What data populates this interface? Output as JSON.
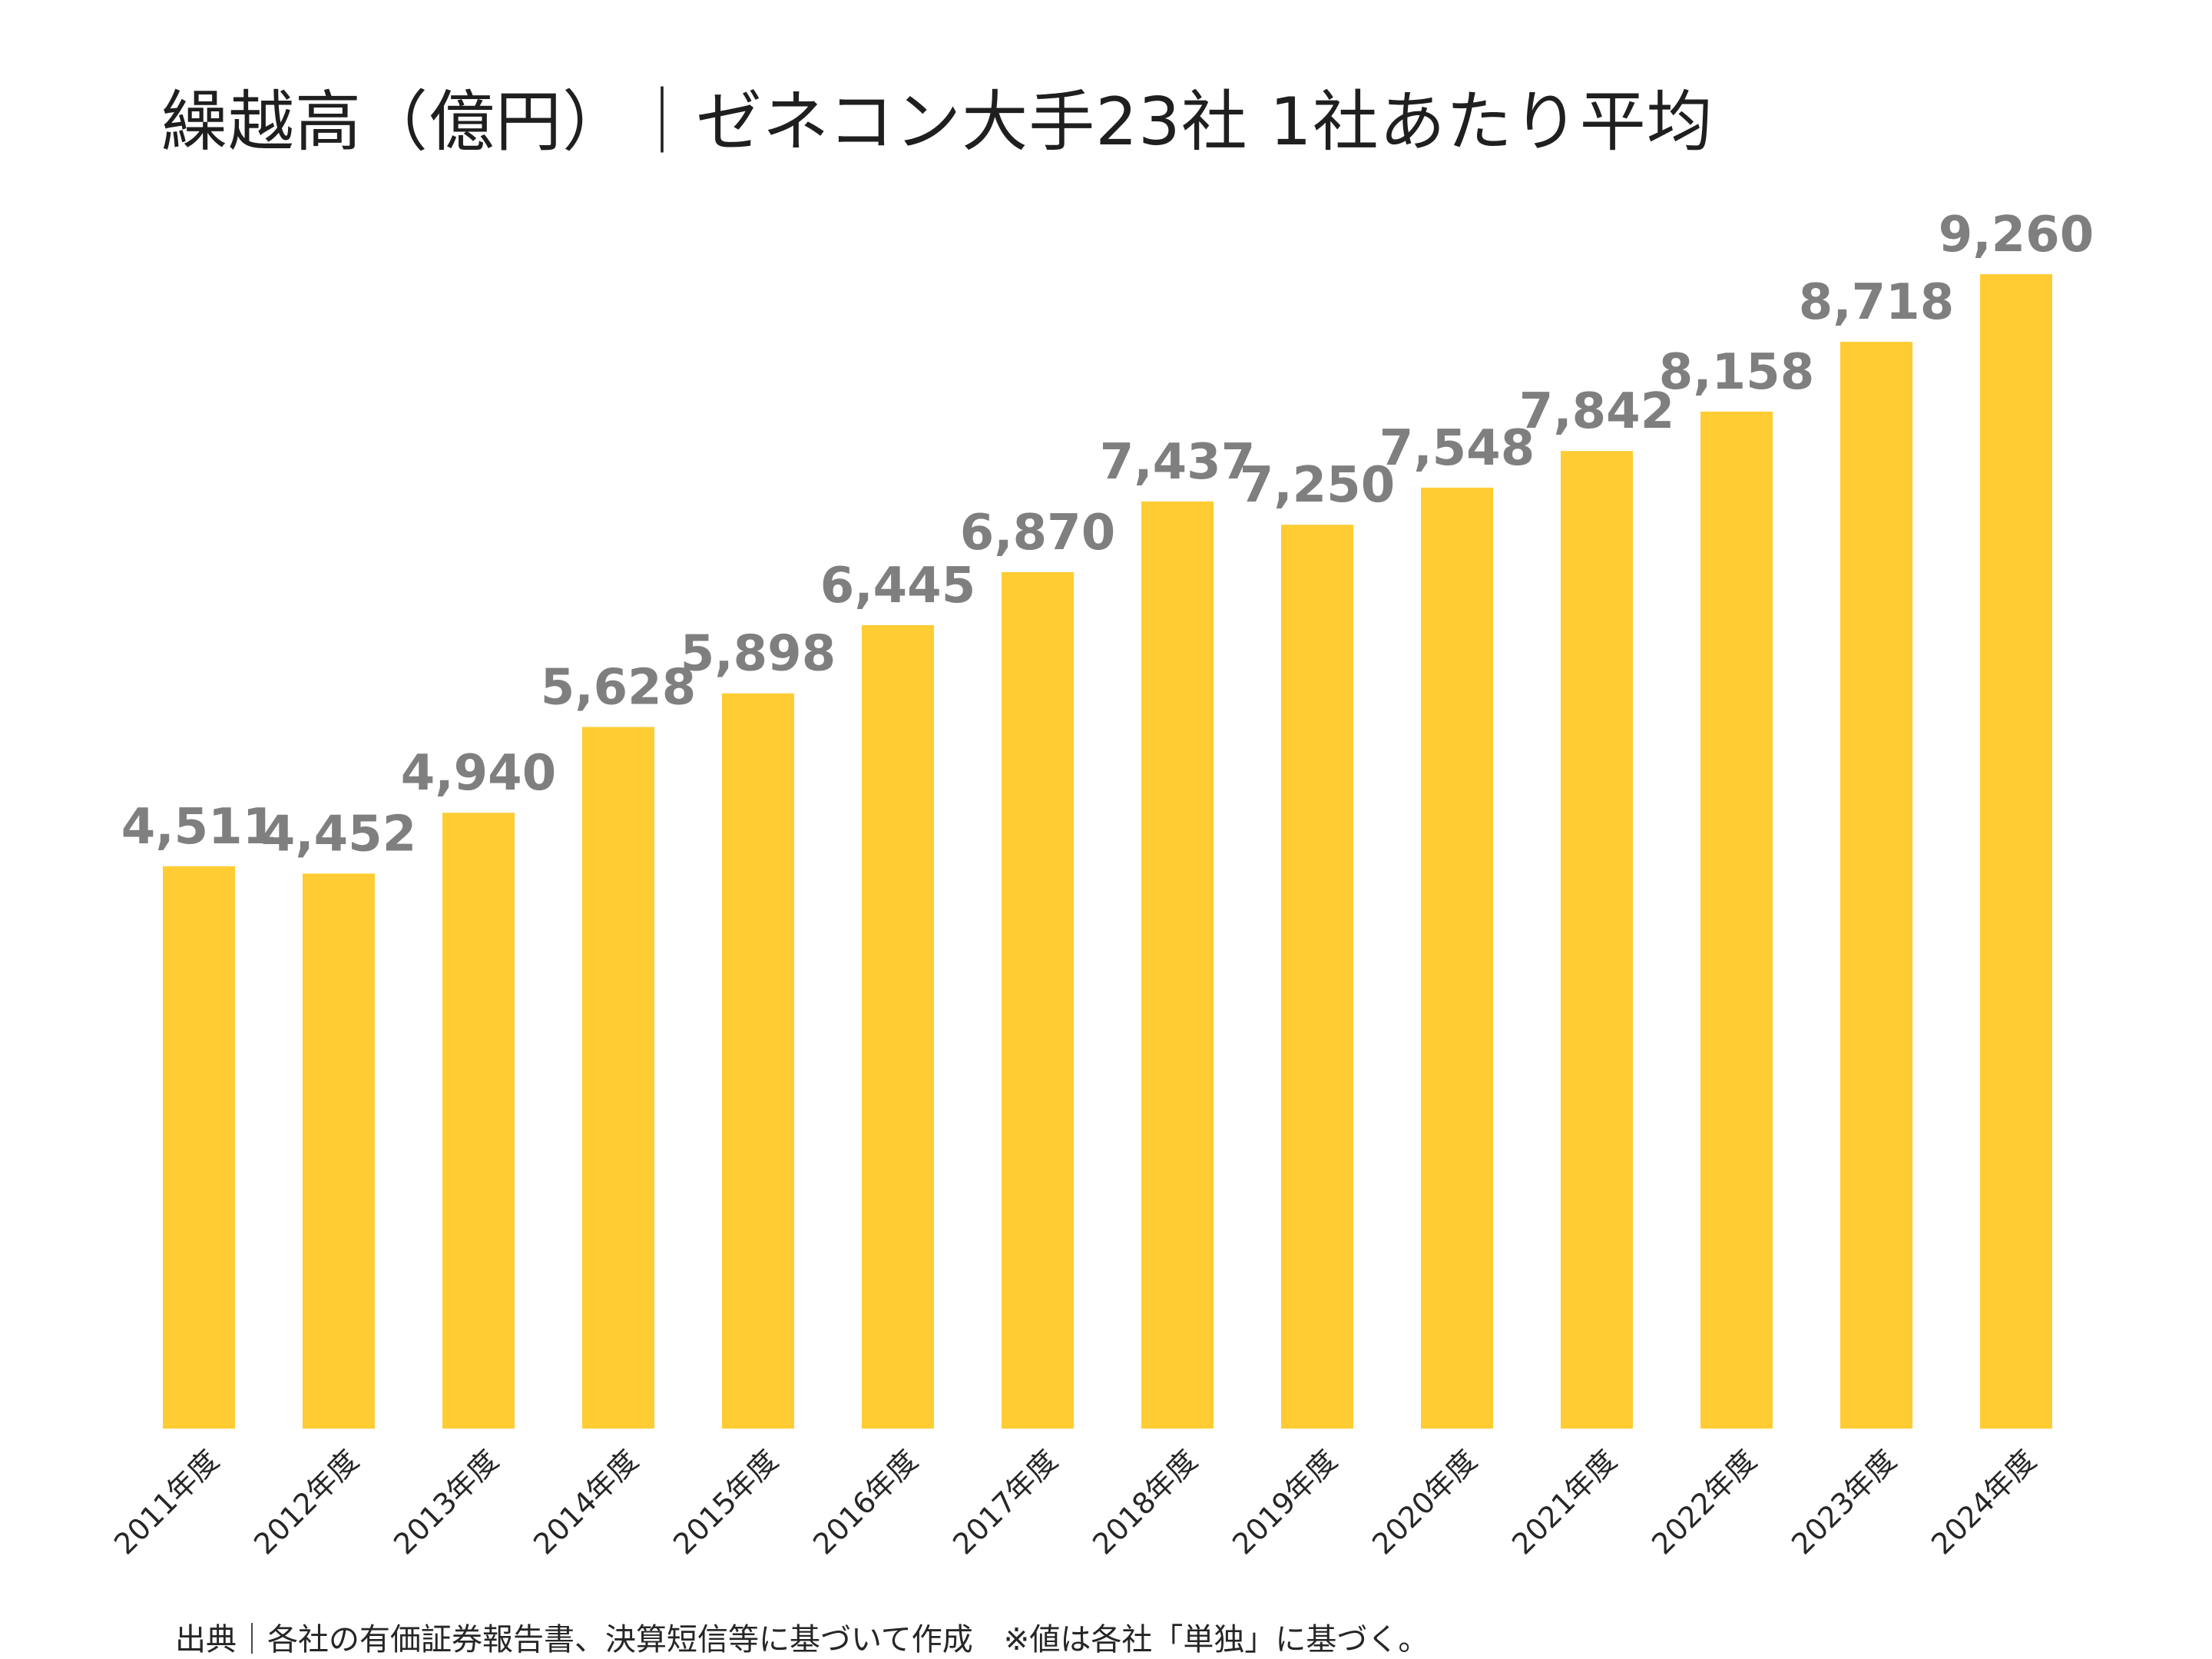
{
  "chart_data": {
    "type": "bar",
    "title": "繰越高（億円）｜ゼネコン大手23社 1社あたり平均",
    "categories": [
      "2011年度",
      "2012年度",
      "2013年度",
      "2014年度",
      "2015年度",
      "2016年度",
      "2017年度",
      "2018年度",
      "2019年度",
      "2020年度",
      "2021年度",
      "2022年度",
      "2023年度",
      "2024年度"
    ],
    "values": [
      4511,
      4452,
      4940,
      5628,
      5898,
      6445,
      6870,
      7437,
      7250,
      7548,
      7842,
      8158,
      8718,
      9260
    ],
    "value_labels": [
      "4,511",
      "4,452",
      "4,940",
      "5,628",
      "5,898",
      "6,445",
      "6,870",
      "7,437",
      "7,250",
      "7,548",
      "7,842",
      "8,158",
      "8,718",
      "9,260"
    ],
    "ylim": [
      0,
      9260
    ],
    "grid": false,
    "legend": "none",
    "bar_color": "#FFCC33",
    "label_color": "#7F7F7F"
  },
  "footer": {
    "source": "出典｜各社の有価証券報告書、決算短信等に基づいて作成　※値は各社「単独」に基づく。"
  }
}
